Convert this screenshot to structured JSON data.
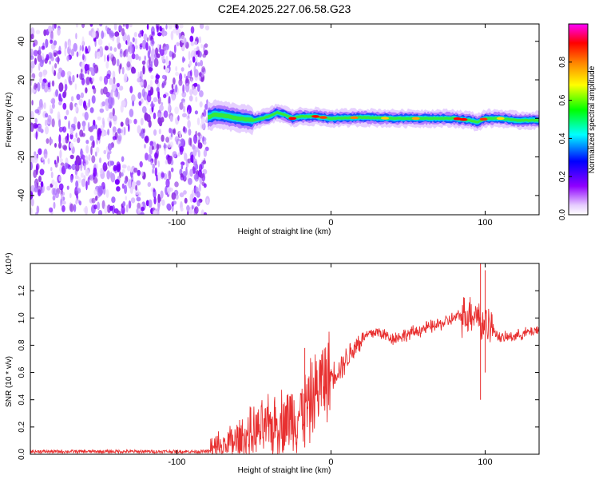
{
  "title": "C2E4.2025.227.06.58.G23",
  "chart_data": [
    {
      "type": "heatmap",
      "xlabel": "Height of straight line (km)",
      "ylabel": "Frequency (Hz)",
      "xlim": [
        -195,
        135
      ],
      "ylim": [
        -50,
        49
      ],
      "xticks": [
        -100,
        0,
        100
      ],
      "xtick_labels": [
        "-100",
        "0",
        "100"
      ],
      "yticks": [
        -40,
        -20,
        0,
        20,
        40
      ],
      "ytick_labels": [
        "-40",
        "-20",
        "0",
        "20",
        "40"
      ],
      "noise_region_x": [
        -195,
        -80
      ],
      "signal_trace": {
        "x": [
          -80,
          -75,
          -70,
          -60,
          -50,
          -40,
          -35,
          -30,
          -25,
          -20,
          -10,
          0,
          20,
          40,
          60,
          80,
          90,
          95,
          100,
          110,
          120,
          135
        ],
        "freq": [
          0.5,
          2,
          1.5,
          0,
          -1,
          1,
          3,
          2,
          0,
          1,
          1,
          0,
          0.5,
          0,
          0,
          0,
          -1,
          -2,
          0,
          0,
          -1,
          -1
        ]
      },
      "colorbar": {
        "label": "Normalized spectral amplitude",
        "range": [
          0,
          1
        ],
        "ticks": [
          0.0,
          0.2,
          0.4,
          0.6,
          0.8
        ],
        "tick_labels": [
          "0.0",
          "0.2",
          "0.4",
          "0.6",
          "0.8"
        ],
        "colors": [
          "#ffffff",
          "#9000ff",
          "#0000ff",
          "#00ffff",
          "#00ff00",
          "#ffff00",
          "#ff8000",
          "#ff0000",
          "#ff00ff"
        ]
      },
      "grid": false
    },
    {
      "type": "line",
      "xlabel": "Height of straight line (km)",
      "ylabel": "SNR (10 * v/v)",
      "scale_label": "(x10⁴)",
      "xlim": [
        -195,
        135
      ],
      "ylim": [
        0,
        1.4
      ],
      "xticks": [
        -100,
        0,
        100
      ],
      "xtick_labels": [
        "-100",
        "0",
        "100"
      ],
      "yticks": [
        0.0,
        0.2,
        0.4,
        0.6,
        0.8,
        1.0,
        1.2
      ],
      "ytick_labels": [
        "0.0",
        "0.2",
        "0.4",
        "0.6",
        "0.8",
        "1.0",
        "1.2"
      ],
      "series": [
        {
          "color": "#e83030",
          "x": [
            -195,
            -150,
            -100,
            -80,
            -75,
            -70,
            -60,
            -50,
            -40,
            -30,
            -20,
            -15,
            -10,
            -5,
            0,
            5,
            10,
            15,
            20,
            25,
            30,
            40,
            50,
            60,
            70,
            80,
            85,
            90,
            95,
            98,
            100,
            105,
            110,
            120,
            130,
            135
          ],
          "y": [
            0.02,
            0.02,
            0.02,
            0.02,
            0.03,
            0.05,
            0.1,
            0.15,
            0.2,
            0.25,
            0.3,
            0.35,
            0.45,
            0.55,
            0.58,
            0.62,
            0.7,
            0.78,
            0.85,
            0.88,
            0.9,
            0.85,
            0.88,
            0.92,
            0.95,
            1.0,
            1.02,
            1.03,
            1.05,
            0.9,
            1.0,
            0.92,
            0.85,
            0.87,
            0.9,
            0.92
          ]
        }
      ],
      "annotations": [
        {
          "x": -17,
          "y_range": [
            0.05,
            0.78
          ]
        },
        {
          "x": 97,
          "y_range": [
            0.4,
            1.4
          ]
        },
        {
          "x": 100,
          "y_range": [
            0.6,
            1.35
          ]
        }
      ],
      "grid": false
    }
  ]
}
